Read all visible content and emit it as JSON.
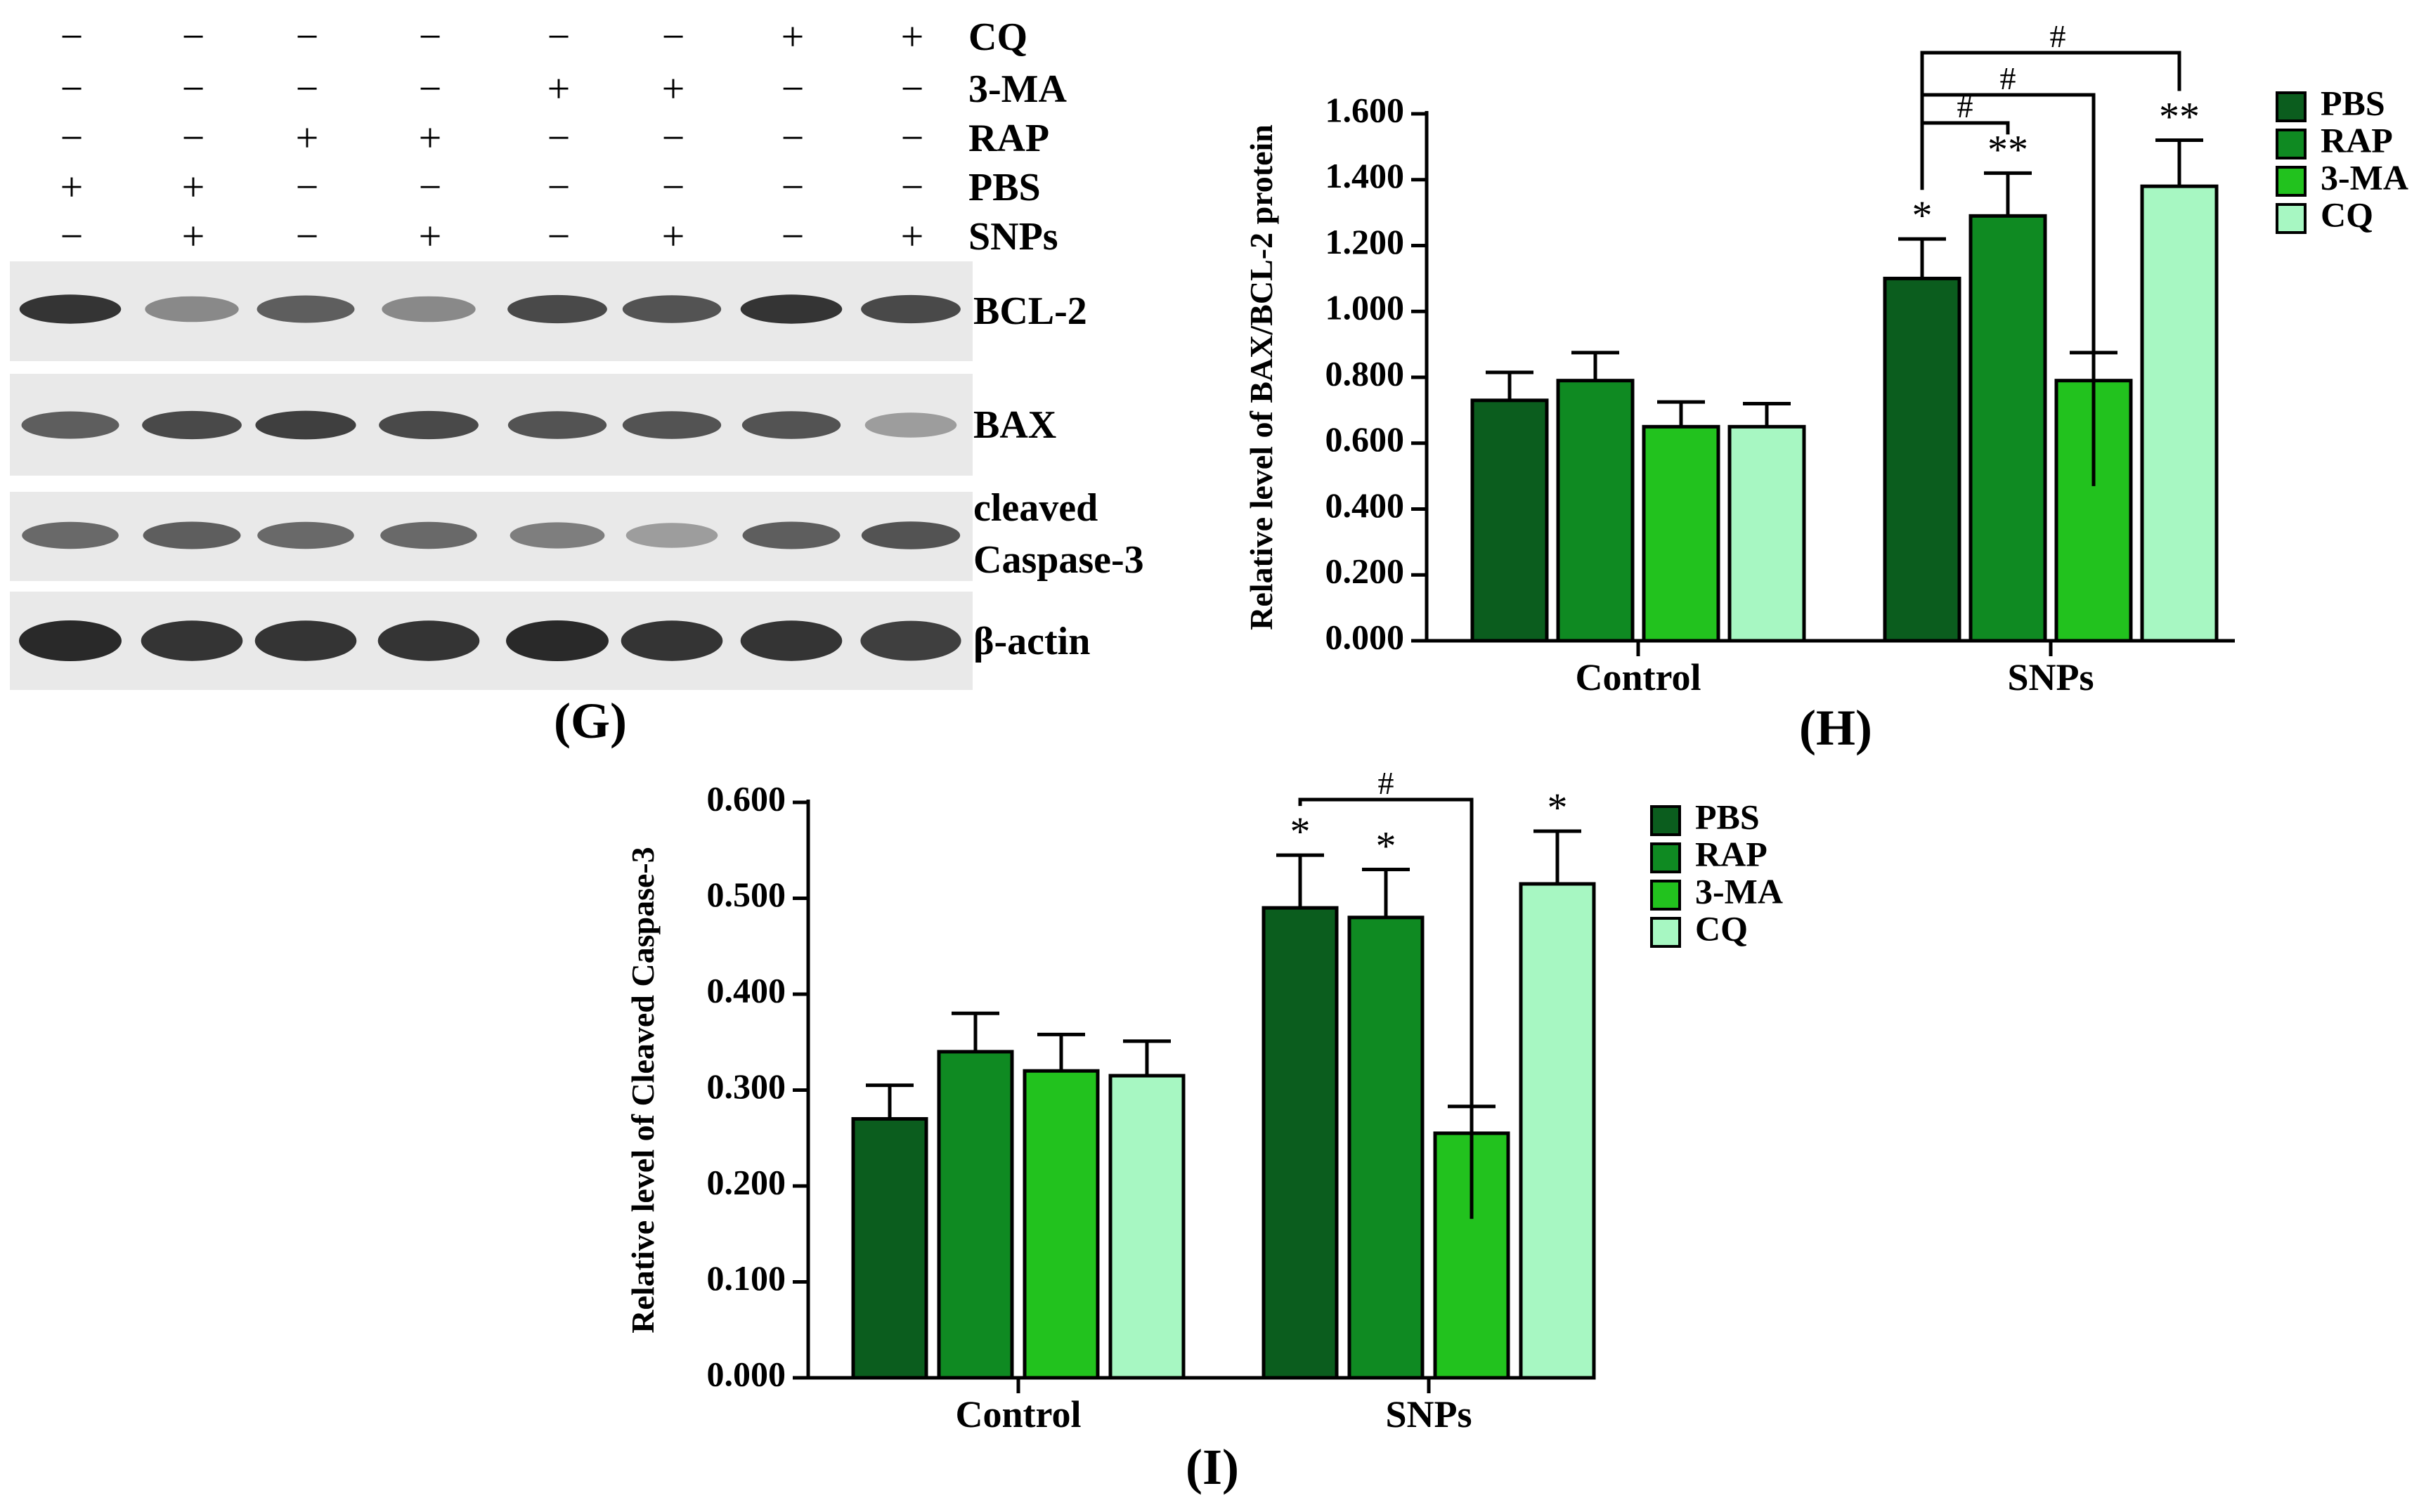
{
  "western_blot": {
    "panel_label": "(G)",
    "treatment_rows": [
      {
        "label": "CQ",
        "signs": [
          "−",
          "−",
          "−",
          "−",
          "−",
          "−",
          "+",
          "+"
        ]
      },
      {
        "label": "3-MA",
        "signs": [
          "−",
          "−",
          "−",
          "−",
          "+",
          "+",
          "−",
          "−"
        ]
      },
      {
        "label": "RAP",
        "signs": [
          "−",
          "−",
          "+",
          "+",
          "−",
          "−",
          "−",
          "−"
        ]
      },
      {
        "label": "PBS",
        "signs": [
          "+",
          "+",
          "−",
          "−",
          "−",
          "−",
          "−",
          "−"
        ]
      },
      {
        "label": "SNPs",
        "signs": [
          "−",
          "+",
          "−",
          "+",
          "−",
          "+",
          "−",
          "+"
        ]
      }
    ],
    "bands": [
      {
        "label": "BCL-2",
        "intensity": [
          0.95,
          0.55,
          0.75,
          0.55,
          0.85,
          0.8,
          0.95,
          0.85
        ]
      },
      {
        "label": "BAX",
        "intensity": [
          0.75,
          0.85,
          0.9,
          0.85,
          0.8,
          0.8,
          0.8,
          0.45
        ]
      },
      {
        "label": "cleaved\nCaspase-3",
        "label_lines": [
          "cleaved",
          "Caspase-3"
        ],
        "intensity": [
          0.7,
          0.75,
          0.7,
          0.7,
          0.6,
          0.45,
          0.75,
          0.8
        ]
      },
      {
        "label": "β-actin",
        "intensity": [
          1.0,
          0.95,
          0.95,
          0.95,
          1.0,
          0.95,
          0.95,
          0.9
        ]
      }
    ]
  },
  "chart_data": [
    {
      "panel_label": "(H)",
      "type": "bar",
      "categories": [
        "Control",
        "SNPs"
      ],
      "ylabel": "Relative level of BAX/BCL-2 protein",
      "xlabel": "",
      "ylim": [
        0,
        1.6
      ],
      "yticks": [
        "0.000",
        "0.200",
        "0.400",
        "0.600",
        "0.800",
        "1.000",
        "1.200",
        "1.400",
        "1.600"
      ],
      "legend_position": "top-right",
      "series": [
        {
          "name": "PBS",
          "color": "#0b5d1e",
          "values": [
            0.73,
            1.1
          ],
          "errors": [
            0.085,
            0.12
          ]
        },
        {
          "name": "RAP",
          "color": "#0f8a22",
          "values": [
            0.79,
            1.29
          ],
          "errors": [
            0.085,
            0.13
          ]
        },
        {
          "name": "3-MA",
          "color": "#22c21e",
          "values": [
            0.65,
            0.79
          ],
          "errors": [
            0.075,
            0.085
          ]
        },
        {
          "name": "CQ",
          "color": "#a7f7c2",
          "values": [
            0.65,
            1.38
          ],
          "errors": [
            0.07,
            0.14
          ]
        }
      ],
      "annotations": {
        "stars": [
          {
            "group": 1,
            "series": 0,
            "text": "*"
          },
          {
            "group": 1,
            "series": 1,
            "text": "**"
          },
          {
            "group": 1,
            "series": 3,
            "text": "**"
          }
        ],
        "brackets": [
          {
            "group": 1,
            "from": 0,
            "to": 1,
            "text": "#"
          },
          {
            "group": 1,
            "from": 0,
            "to": 2,
            "text": "#"
          },
          {
            "group": 1,
            "from": 0,
            "to": 3,
            "text": "#"
          }
        ]
      }
    },
    {
      "panel_label": "(I)",
      "type": "bar",
      "categories": [
        "Control",
        "SNPs"
      ],
      "ylabel": "Relative level of Cleaved Caspase-3",
      "xlabel": "",
      "ylim": [
        0,
        0.6
      ],
      "yticks": [
        "0.000",
        "0.100",
        "0.200",
        "0.300",
        "0.400",
        "0.500",
        "0.600"
      ],
      "legend_position": "top-right",
      "series": [
        {
          "name": "PBS",
          "color": "#0b5d1e",
          "values": [
            0.27,
            0.49
          ],
          "errors": [
            0.035,
            0.055
          ]
        },
        {
          "name": "RAP",
          "color": "#0f8a22",
          "values": [
            0.34,
            0.48
          ],
          "errors": [
            0.04,
            0.05
          ]
        },
        {
          "name": "3-MA",
          "color": "#22c21e",
          "values": [
            0.32,
            0.255
          ],
          "errors": [
            0.038,
            0.028
          ]
        },
        {
          "name": "CQ",
          "color": "#a7f7c2",
          "values": [
            0.315,
            0.515
          ],
          "errors": [
            0.036,
            0.055
          ]
        }
      ],
      "annotations": {
        "stars": [
          {
            "group": 1,
            "series": 0,
            "text": "*"
          },
          {
            "group": 1,
            "series": 1,
            "text": "*"
          },
          {
            "group": 1,
            "series": 3,
            "text": "*"
          }
        ],
        "brackets": [
          {
            "group": 1,
            "from": 0,
            "to": 2,
            "text": "#"
          }
        ]
      }
    }
  ]
}
